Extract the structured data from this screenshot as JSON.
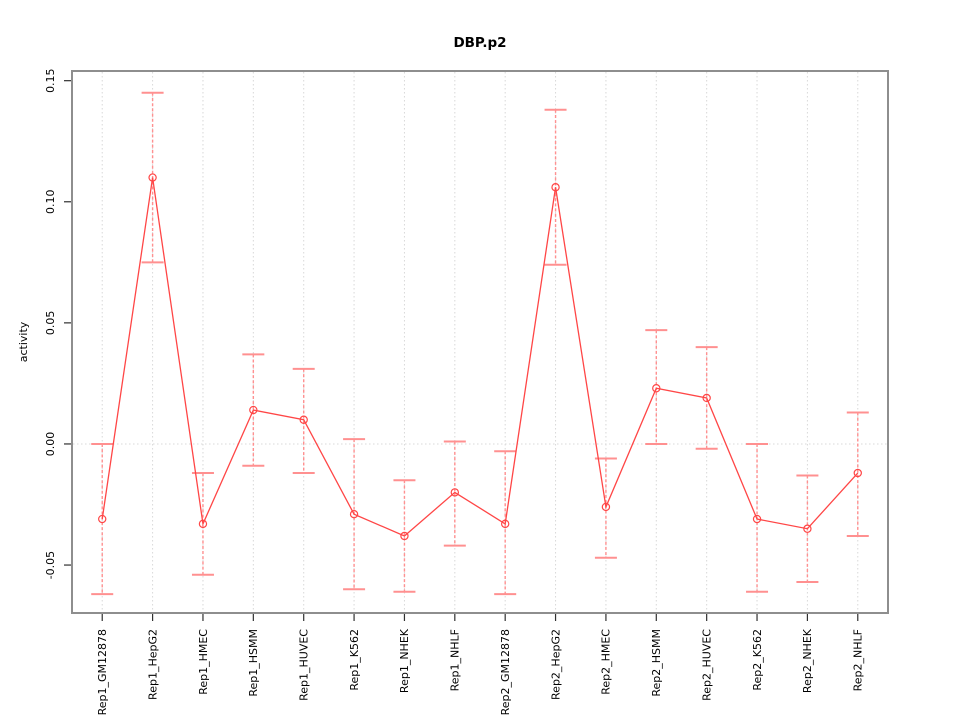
{
  "window": {
    "title": "DBP.p2"
  },
  "chart_data": {
    "type": "line",
    "title": "DBP.p2",
    "xlabel": "",
    "ylabel": "activity",
    "legend": "none",
    "categories": [
      "Rep1_GM12878",
      "Rep1_HepG2",
      "Rep1_HMEC",
      "Rep1_HSMM",
      "Rep1_HUVEC",
      "Rep1_K562",
      "Rep1_NHEK",
      "Rep1_NHLF",
      "Rep2_GM12878",
      "Rep2_HepG2",
      "Rep2_HMEC",
      "Rep2_HSMM",
      "Rep2_HUVEC",
      "Rep2_K562",
      "Rep2_NHEK",
      "Rep2_NHLF"
    ],
    "series": [
      {
        "name": "activity",
        "marker": "open-circle",
        "values": [
          -0.031,
          0.11,
          -0.033,
          0.014,
          0.01,
          -0.029,
          -0.038,
          -0.02,
          -0.033,
          0.106,
          -0.026,
          0.023,
          0.019,
          -0.031,
          -0.035,
          -0.012
        ],
        "lower": [
          -0.062,
          0.075,
          -0.054,
          -0.009,
          -0.012,
          -0.06,
          -0.061,
          -0.042,
          -0.062,
          0.074,
          -0.047,
          0.0,
          -0.002,
          -0.061,
          -0.057,
          -0.038
        ],
        "upper": [
          0.0,
          0.145,
          -0.012,
          0.037,
          0.031,
          0.002,
          -0.015,
          0.001,
          -0.003,
          0.138,
          -0.006,
          0.047,
          0.04,
          0.0,
          -0.013,
          0.013
        ]
      }
    ],
    "yticks": [
      -0.05,
      0.0,
      0.05,
      0.1,
      0.15
    ],
    "ylim": [
      -0.0698,
      0.154
    ],
    "grid": {
      "vertical": "per-category",
      "horizontal_at": 0,
      "style": "dotted"
    },
    "colors": {
      "line": "#ff4646",
      "point": "#ff4646",
      "error_bar": "#ff9090",
      "grid": "#d8d8d8",
      "frame": "#8e8e8e",
      "tick": "#303030",
      "text": "#000000"
    }
  }
}
